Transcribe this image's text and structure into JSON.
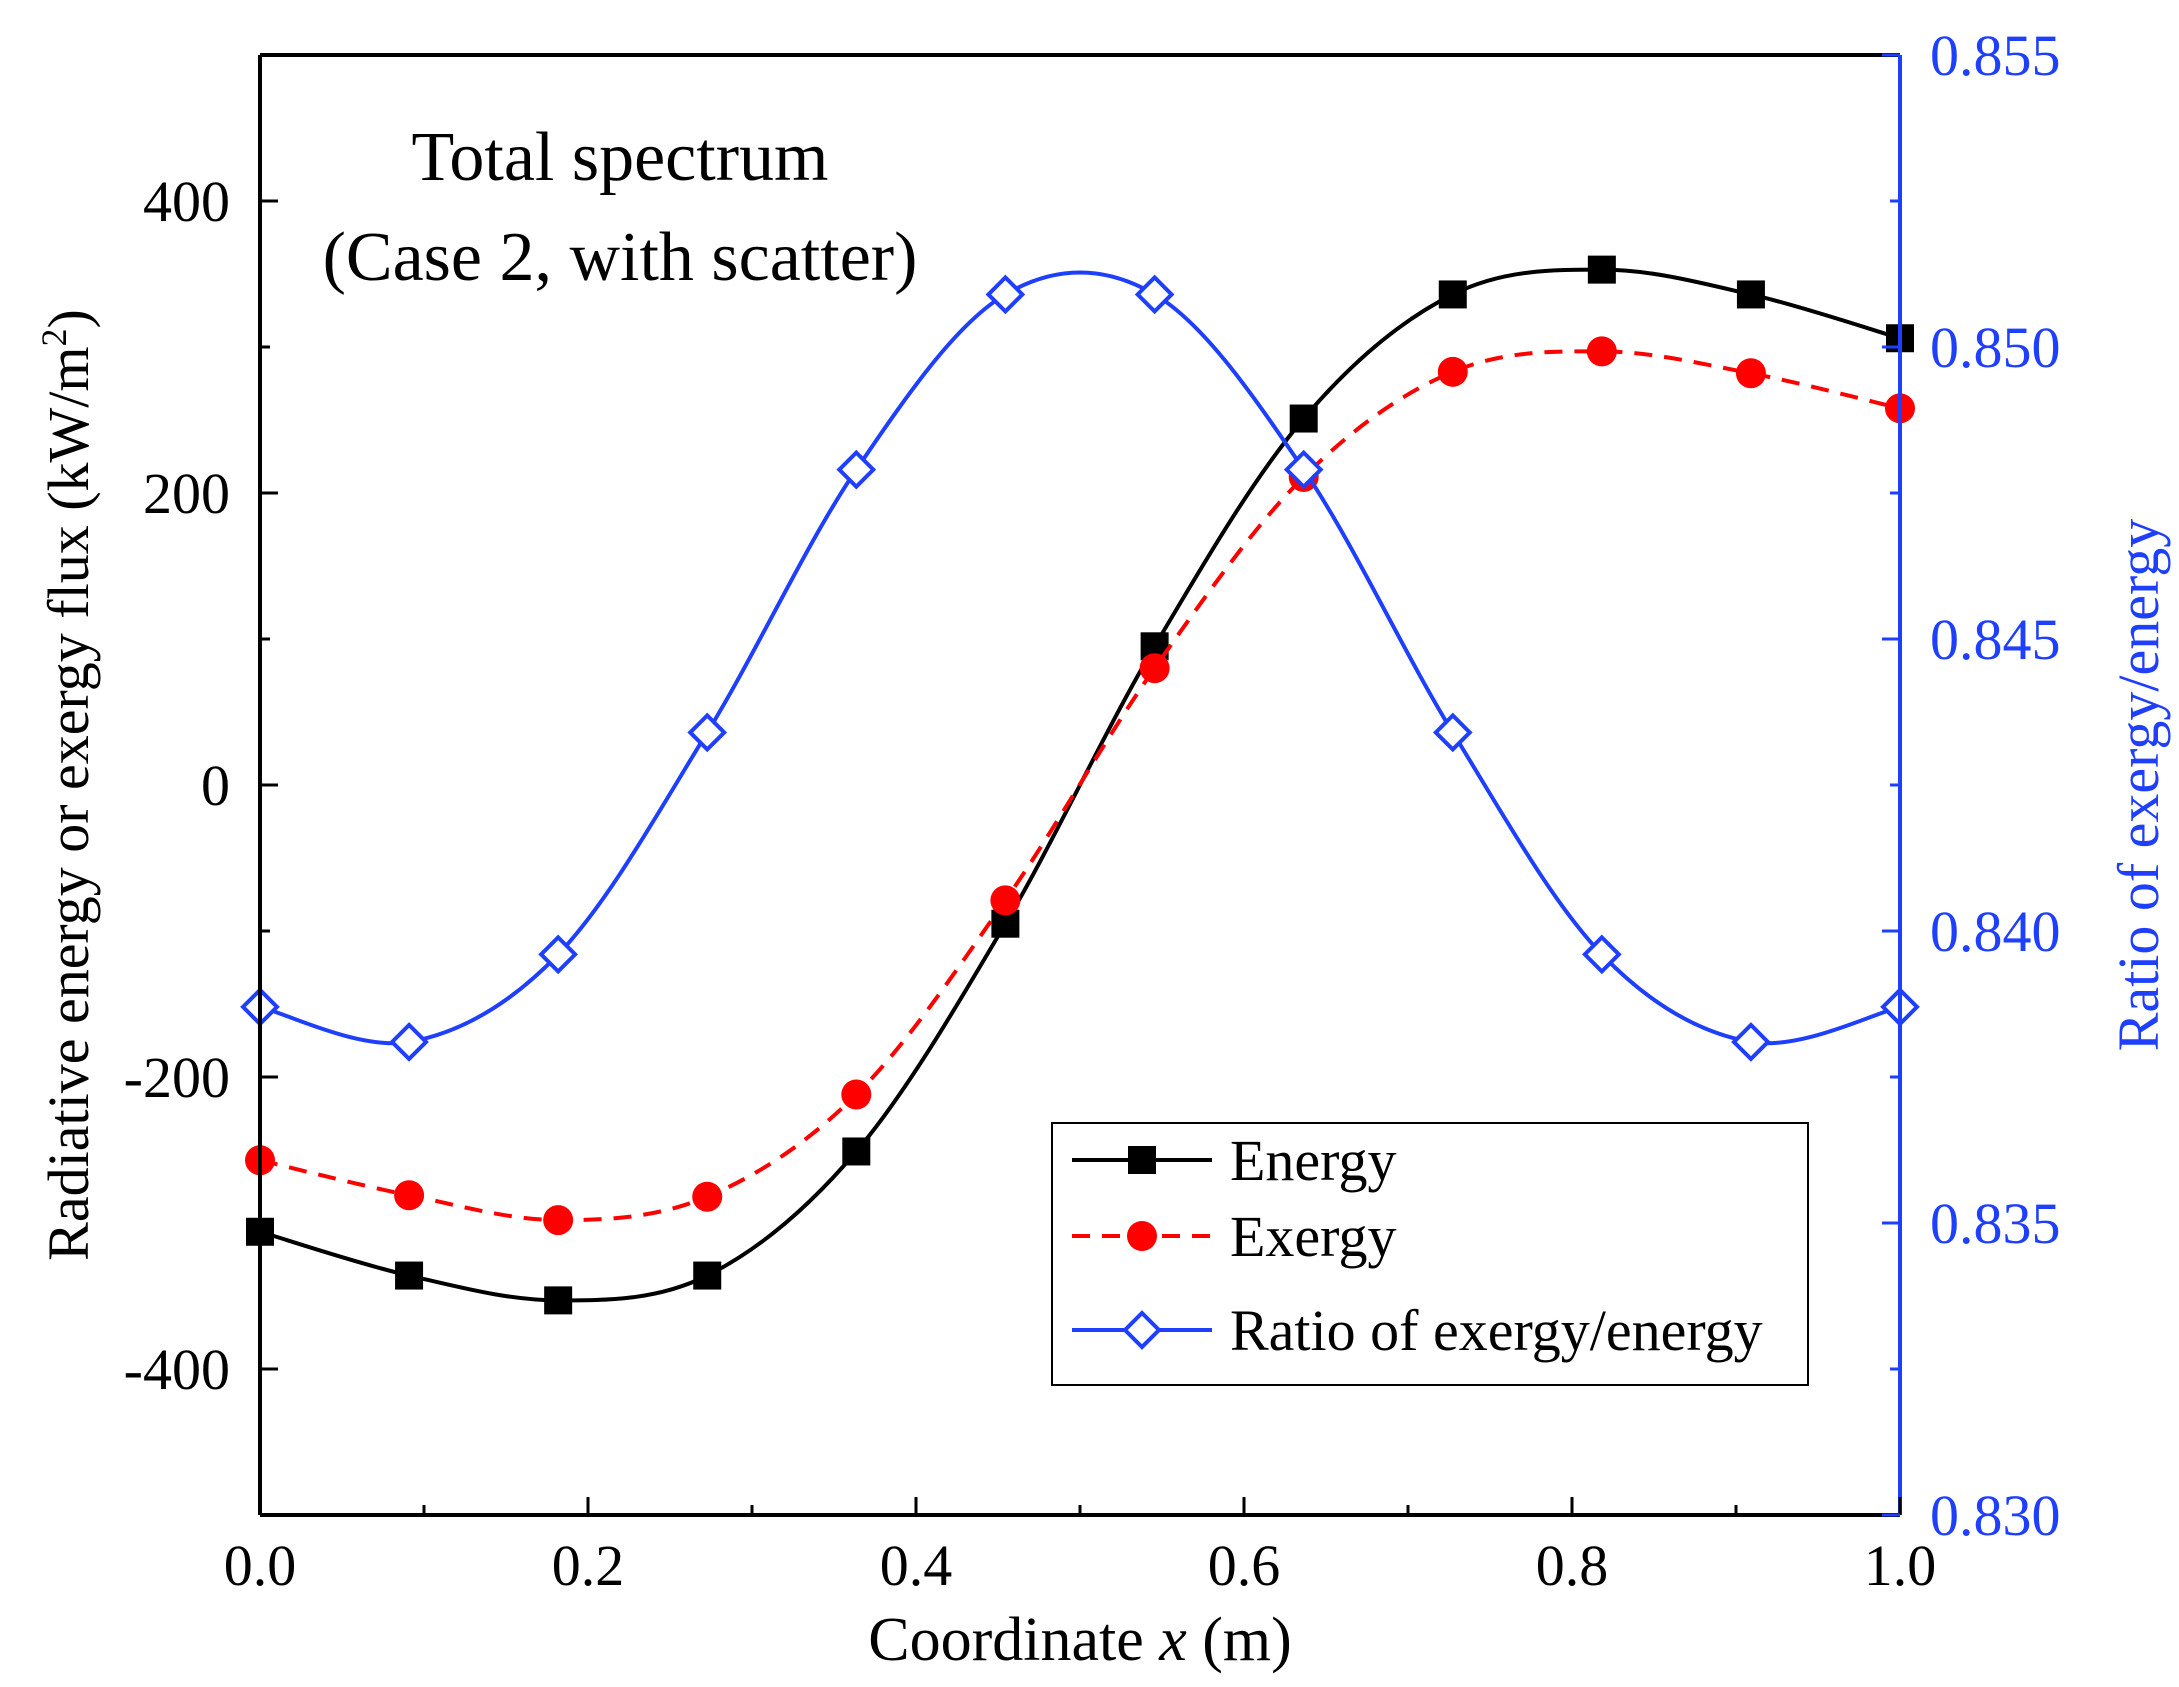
{
  "chart_data": {
    "type": "line",
    "title_line1": "Total spectrum",
    "title_line2": "(Case 2, with scatter)",
    "xlabel_prefix": "Coordinate ",
    "xlabel_var": "x",
    "xlabel_suffix": " (m)",
    "ylabel_left_main": "Radiative energy or exergy flux (kW/m",
    "ylabel_left_sup": "2",
    "ylabel_left_close": ")",
    "ylabel_right": "Ratio of exergy/energy",
    "xlim": [
      0.0,
      1.0
    ],
    "ylim_left": [
      -500,
      500
    ],
    "ylim_right": [
      0.83,
      0.855
    ],
    "x_ticks": [
      "0.0",
      "0.2",
      "0.4",
      "0.6",
      "0.8",
      "1.0"
    ],
    "x_tick_values": [
      0.0,
      0.2,
      0.4,
      0.6,
      0.8,
      1.0
    ],
    "y_left_ticks": [
      "400",
      "200",
      "0",
      "-200",
      "-400"
    ],
    "y_left_tick_values": [
      400,
      200,
      0,
      -200,
      -400
    ],
    "y_right_ticks": [
      "0.855",
      "0.850",
      "0.845",
      "0.840",
      "0.835",
      "0.830"
    ],
    "y_right_tick_values": [
      0.855,
      0.85,
      0.845,
      0.84,
      0.835,
      0.83
    ],
    "x": [
      0.0,
      0.0909,
      0.1818,
      0.2727,
      0.3636,
      0.4545,
      0.5455,
      0.6364,
      0.7273,
      0.8182,
      0.9091,
      1.0
    ],
    "series": [
      {
        "name": "Energy",
        "axis": "left",
        "color": "#000000",
        "marker": "square",
        "dash": "solid",
        "values": [
          -306,
          -336,
          -353,
          -336,
          -251,
          -95,
          95,
          251,
          336,
          353,
          336,
          306
        ]
      },
      {
        "name": "Exergy",
        "axis": "left",
        "color": "#ff0000",
        "marker": "circle",
        "dash": "dashed",
        "values": [
          -257,
          -281,
          -298,
          -282,
          -212,
          -79,
          80,
          211,
          283,
          297,
          282,
          258
        ]
      },
      {
        "name": "Ratio of exergy/energy",
        "axis": "right",
        "color": "#1f3fff",
        "marker": "diamond-open",
        "dash": "solid",
        "values": [
          0.8387,
          0.8381,
          0.8396,
          0.8434,
          0.8479,
          0.8509,
          0.8509,
          0.8479,
          0.8434,
          0.8396,
          0.8381,
          0.8387
        ]
      }
    ],
    "legend_position": "lower-right"
  }
}
